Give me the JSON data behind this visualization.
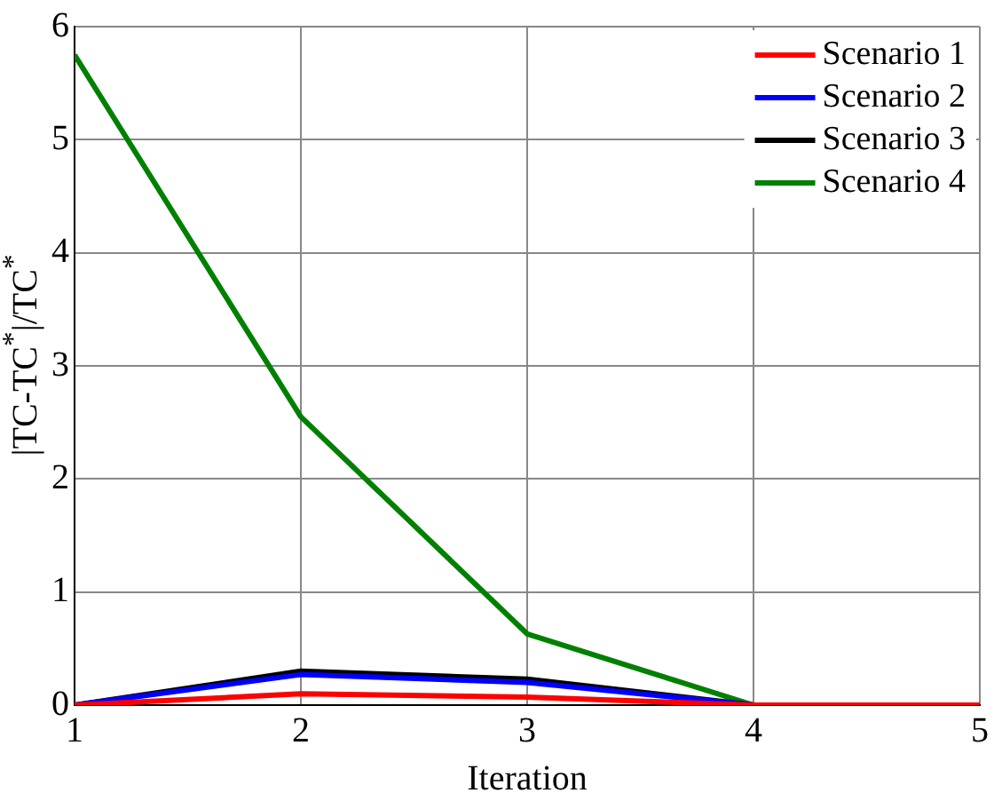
{
  "chart_data": {
    "type": "line",
    "xlabel": "Iteration",
    "ylabel": "|TC-TC$^{*}$|/TC$^{*}$",
    "x": [
      1,
      2,
      3,
      4,
      5
    ],
    "series": [
      {
        "name": "Scenario 1",
        "color": "#ff0000",
        "values": [
          0,
          0.1,
          0.07,
          0,
          0
        ]
      },
      {
        "name": "Scenario 2",
        "color": "#0000ff",
        "values": [
          0,
          0.27,
          0.2,
          0,
          0
        ]
      },
      {
        "name": "Scenario 3",
        "color": "#000000",
        "values": [
          0,
          0.3,
          0.23,
          0,
          0
        ]
      },
      {
        "name": "Scenario 4",
        "color": "#008000",
        "values": [
          5.75,
          2.55,
          0.63,
          0,
          0
        ]
      }
    ],
    "xlim": [
      1,
      5
    ],
    "xticks": [
      1,
      2,
      3,
      4,
      5
    ],
    "ylim": [
      0,
      6
    ],
    "yticks": [
      0,
      1,
      2,
      3,
      4,
      5,
      6
    ],
    "grid": true,
    "legend": "top right",
    "marker": "none",
    "line_style": "solid"
  }
}
